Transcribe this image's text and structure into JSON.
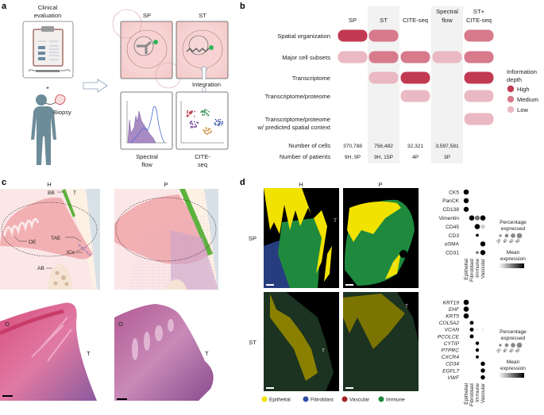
{
  "panel_labels": {
    "a": "a",
    "b": "b",
    "c": "c",
    "d": "d"
  },
  "panel_a": {
    "clinical_evaluation": [
      "Clinical",
      "evaluation"
    ],
    "plus": "+",
    "biopsy": "Biopsy",
    "sp": "SP",
    "st": "ST",
    "integration": "Integration",
    "spectral_flow": [
      "Spectral",
      "flow"
    ],
    "cite_seq": [
      "CITE-",
      "seq"
    ],
    "cluster_colors": [
      "#b5303f",
      "#2e8b4b",
      "#6a3d9a",
      "#2b4a9a",
      "#c8812a"
    ]
  },
  "panel_b": {
    "columns": [
      {
        "label": [
          "",
          "SP"
        ],
        "shaded": false,
        "cells": "370,788",
        "patients": "9H, 9P"
      },
      {
        "label": [
          "",
          "ST"
        ],
        "shaded": true,
        "cells": "756,482",
        "patients": "9H, 15P"
      },
      {
        "label": [
          "",
          "CITE-seq"
        ],
        "shaded": false,
        "cells": "32,321",
        "patients": "4P"
      },
      {
        "label": [
          "Spectral",
          "flow"
        ],
        "shaded": true,
        "cells": "3,597,581",
        "patients": "3P"
      },
      {
        "label": [
          "ST+",
          "CITE-seq"
        ],
        "shaded": false,
        "cells": "",
        "patients": ""
      }
    ],
    "rows": [
      {
        "label": [
          "Spatial organization"
        ],
        "levels": [
          "high",
          "medium",
          null,
          null,
          "medium"
        ]
      },
      {
        "label": [
          "Major cell subsets"
        ],
        "levels": [
          "low",
          "medium",
          "medium",
          "low",
          "medium"
        ]
      },
      {
        "label": [
          "Transcriptome"
        ],
        "levels": [
          null,
          "low",
          "high",
          null,
          "high"
        ]
      },
      {
        "label": [
          "Transcriptome/proteome"
        ],
        "levels": [
          null,
          null,
          "low",
          null,
          "low"
        ]
      },
      {
        "label": [
          "Transcriptome/proteome",
          "w/ predicted spatial context"
        ],
        "levels": [
          null,
          null,
          null,
          null,
          "low"
        ]
      }
    ],
    "number_of_cells_label": "Number of cells",
    "number_of_patients_label": "Number of patients",
    "legend": {
      "title": [
        "Information",
        "depth"
      ],
      "items": [
        {
          "key": "high",
          "label": "High",
          "color": "#c23a52"
        },
        {
          "key": "medium",
          "label": "Medium",
          "color": "#d77a8b"
        },
        {
          "key": "low",
          "label": "Low",
          "color": "#eab9c3"
        }
      ]
    },
    "shade_color": "#f2f2f2"
  },
  "panel_c": {
    "h": "H",
    "p": "P",
    "bb": "BB",
    "t": "T",
    "oe": "OE",
    "tae": "TAE",
    "ics": "ICs",
    "ab": "AB",
    "o": "O"
  },
  "panel_d": {
    "h": "H",
    "p": "P",
    "sp": "SP",
    "st": "ST",
    "t": "T",
    "legend": [
      {
        "label": "Epithelial",
        "color": "#f2e200"
      },
      {
        "label": "Fibroblast",
        "color": "#3050a8"
      },
      {
        "label": "Vascular",
        "color": "#a52222"
      },
      {
        "label": "Immune",
        "color": "#1f8a3e"
      }
    ],
    "dotplot_columns": [
      "Epithelial",
      "Fibroblast",
      "Immune",
      "Vascular"
    ],
    "dotplot_protein": {
      "rows": [
        {
          "marker": "CK5",
          "pct": [
            80,
            0,
            0,
            0
          ],
          "mean": [
            1,
            0,
            0,
            0
          ]
        },
        {
          "marker": "PanCK",
          "pct": [
            75,
            0,
            0,
            0
          ],
          "mean": [
            1,
            0,
            0,
            0
          ]
        },
        {
          "marker": "CD138",
          "pct": [
            75,
            0,
            0,
            0
          ],
          "mean": [
            1,
            0,
            0,
            0
          ]
        },
        {
          "marker": "Vimentin",
          "pct": [
            0,
            80,
            70,
            80
          ],
          "mean": [
            0,
            1,
            0.5,
            1
          ]
        },
        {
          "marker": "CD45",
          "pct": [
            0,
            0,
            80,
            60
          ],
          "mean": [
            0,
            0,
            1,
            0.1
          ]
        },
        {
          "marker": "CD3",
          "pct": [
            0,
            0,
            25,
            0
          ],
          "mean": [
            0,
            0,
            1,
            0
          ]
        },
        {
          "marker": "αSMA",
          "pct": [
            0,
            0,
            0,
            75
          ],
          "mean": [
            0,
            0,
            0,
            1
          ]
        },
        {
          "marker": "CD31",
          "pct": [
            0,
            0,
            25,
            75
          ],
          "mean": [
            0,
            0,
            0.5,
            1
          ]
        }
      ]
    },
    "dotplot_rna": {
      "rows": [
        {
          "marker": "KRT19",
          "pct": [
            80,
            0,
            0,
            0
          ],
          "mean": [
            1,
            0,
            0,
            0
          ]
        },
        {
          "marker": "EHF",
          "pct": [
            80,
            0,
            0,
            0
          ],
          "mean": [
            1,
            0,
            0,
            0
          ]
        },
        {
          "marker": "KRT5",
          "pct": [
            80,
            0,
            0,
            0
          ],
          "mean": [
            1,
            0,
            0,
            0
          ]
        },
        {
          "marker": "COL5A2",
          "pct": [
            0,
            45,
            0,
            0
          ],
          "mean": [
            0,
            1,
            0,
            0
          ]
        },
        {
          "marker": "VCAN",
          "pct": [
            0,
            45,
            8,
            8
          ],
          "mean": [
            0,
            1,
            0.05,
            0.05
          ]
        },
        {
          "marker": "PCOLCE",
          "pct": [
            0,
            45,
            0,
            0
          ],
          "mean": [
            0,
            1,
            0,
            0
          ]
        },
        {
          "marker": "CYTIP",
          "pct": [
            0,
            0,
            35,
            0
          ],
          "mean": [
            0,
            0,
            1,
            0
          ]
        },
        {
          "marker": "PTPRC",
          "pct": [
            0,
            0,
            35,
            0
          ],
          "mean": [
            0,
            0,
            1,
            0
          ]
        },
        {
          "marker": "CXCR4",
          "pct": [
            0,
            0,
            28,
            0
          ],
          "mean": [
            0,
            0,
            1,
            0
          ]
        },
        {
          "marker": "CD34",
          "pct": [
            0,
            0,
            0,
            55
          ],
          "mean": [
            0,
            0,
            0,
            1
          ]
        },
        {
          "marker": "EGFL7",
          "pct": [
            0,
            0,
            0,
            55
          ],
          "mean": [
            0,
            0,
            0,
            1
          ]
        },
        {
          "marker": "VWF",
          "pct": [
            0,
            0,
            0,
            55
          ],
          "mean": [
            0,
            0,
            0,
            1
          ]
        }
      ]
    },
    "pct_legend_title": [
      "Percentage",
      "expressed"
    ],
    "pct_legend_ticks": [
      "20",
      "40",
      "60",
      "80"
    ],
    "mean_legend_title": [
      "Mean",
      "expression"
    ]
  }
}
